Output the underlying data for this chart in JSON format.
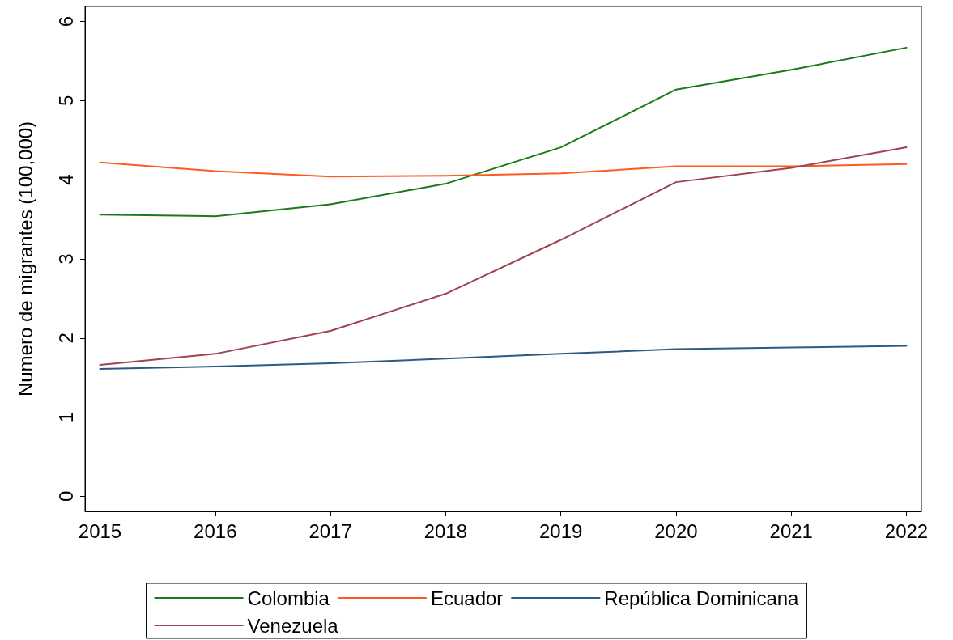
{
  "chart_data": {
    "type": "line",
    "ylabel": "Numero de migrantes (100,000)",
    "x": [
      2015,
      2016,
      2017,
      2018,
      2019,
      2020,
      2021,
      2022
    ],
    "series": [
      {
        "name": "Colombia",
        "color": "#1a7a1a",
        "values": [
          3.56,
          3.54,
          3.69,
          3.95,
          4.41,
          5.14,
          5.39,
          5.67
        ]
      },
      {
        "name": "Ecuador",
        "color": "#ff5a1f",
        "values": [
          4.22,
          4.11,
          4.04,
          4.05,
          4.08,
          4.17,
          4.17,
          4.2
        ]
      },
      {
        "name": "República Dominicana",
        "color": "#2b5b84",
        "values": [
          1.61,
          1.64,
          1.68,
          1.74,
          1.8,
          1.86,
          1.88,
          1.9
        ]
      },
      {
        "name": "Venezuela",
        "color": "#a0424f",
        "values": [
          1.66,
          1.8,
          2.09,
          2.56,
          3.24,
          3.97,
          4.15,
          4.41
        ]
      }
    ],
    "xlim": [
      2014.87,
      2022.13
    ],
    "xticks": [
      2015,
      2016,
      2017,
      2018,
      2019,
      2020,
      2021,
      2022
    ],
    "ylim": [
      -0.19,
      6.19
    ],
    "yticks": [
      0,
      1,
      2,
      3,
      4,
      5,
      6
    ],
    "grid": false,
    "legend": "bottom",
    "marker": "none",
    "line_style": "solid"
  }
}
